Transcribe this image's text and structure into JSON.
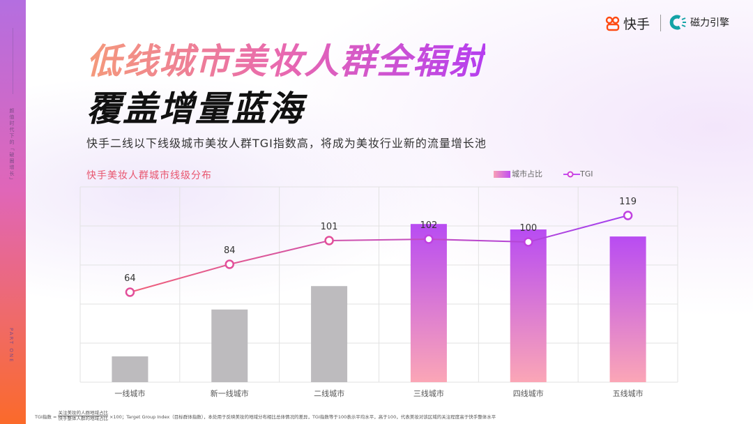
{
  "sidebar": {
    "vertical_text": "颜值时代下的「破圈增长」",
    "part": "PART ONE"
  },
  "logos": {
    "kuaishou": "快手",
    "cili": "磁力引擎"
  },
  "title_line1": "低线城市美妆人群全辐射",
  "title_line2": "覆盖增量蓝海",
  "subtitle": "快手二线以下线级城市美妆人群TGI指数高，将成为美妆行业新的流量增长池",
  "colors": {
    "bar_gray": "#bdbbbe",
    "bar_top": "#b84cf2",
    "bar_bottom": "#fba6b6",
    "line_start": "#f0607a",
    "line_end": "#a33ef0"
  },
  "footnote": {
    "label": "TGI指数 =",
    "numerator": "关注美妆的人群地域占比",
    "denominator": "快手整体人群的地域占比",
    "rest": "×100；Target Group Index（目标群体指数），本处用于反映美妆的地域分布相比总体情况的差异，TGI指数等于100表示平均水平，高于100，代表美妆对该区域的关注程度高于快手整体水平"
  },
  "chart_data": {
    "type": "bar+line",
    "title": "快手美妆人群城市线级分布",
    "categories": [
      "一线城市",
      "新一线城市",
      "二线城市",
      "三线城市",
      "四线城市",
      "五线城市"
    ],
    "series": [
      {
        "name": "城市占比",
        "type": "bar",
        "values": [
          0.66,
          1.86,
          2.46,
          4.05,
          3.91,
          3.73
        ],
        "unit": "relative (gridline units, no axis shown)",
        "highlight": [
          false,
          false,
          false,
          true,
          true,
          true
        ]
      },
      {
        "name": "TGI",
        "type": "line",
        "values": [
          64,
          84,
          101,
          102,
          100,
          119
        ]
      }
    ],
    "grid": true,
    "legend": "top-right"
  }
}
